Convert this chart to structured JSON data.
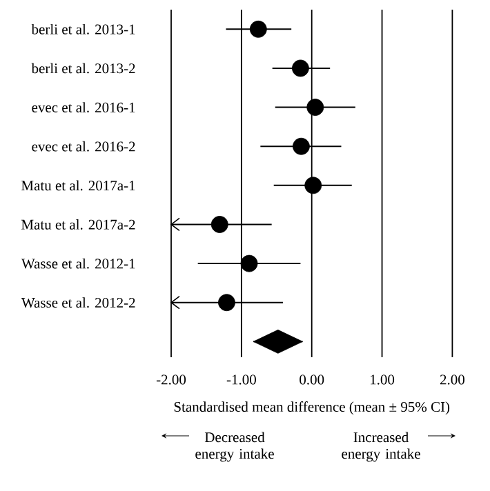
{
  "chart_data": {
    "type": "scatter",
    "orientation": "horizontal",
    "categories": [
      "berli et al. 2013-1",
      "berli et al. 2013-2",
      "evec et al. 2016-1",
      "evec et al. 2016-2",
      "Matu et al. 2017a-1",
      "Matu et al. 2017a-2",
      "Wasse et al. 2012-1",
      "Wasse et al. 2012-2",
      null
    ],
    "xlabel": "Standardised mean difference (mean ± 95% CI)",
    "xlim": [
      -2,
      2
    ],
    "xticks": [
      {
        "value": -2,
        "label": "-2.00"
      },
      {
        "value": -1,
        "label": "-1.00"
      },
      {
        "value": 0,
        "label": "0.00"
      },
      {
        "value": 1,
        "label": "1.00"
      },
      {
        "value": 2,
        "label": "2.00"
      }
    ],
    "grid": "x",
    "annotations": [
      "Decreased energy intake",
      "Increased energy intake"
    ],
    "series": [
      {
        "color": "#000000",
        "marker": "circle",
        "values": [
          -0.76,
          -0.16,
          0.05,
          -0.15,
          0.02,
          -1.31,
          -0.89,
          -1.21,
          null
        ],
        "errors": [
          [
            -1.22,
            -0.29
          ],
          [
            -0.56,
            0.26
          ],
          [
            -0.52,
            0.62
          ],
          [
            -0.73,
            0.42
          ],
          [
            -0.54,
            0.57
          ],
          [
            -2,
            -0.57
          ],
          [
            -1.62,
            -0.16
          ],
          [
            -2,
            -0.41
          ],
          null
        ]
      },
      {
        "color": "#000000",
        "marker": "diamond",
        "values": [
          null,
          null,
          null,
          null,
          null,
          null,
          null,
          null,
          -0.48
        ],
        "errors": [
          null,
          null,
          null,
          null,
          null,
          null,
          null,
          null,
          [
            -0.83,
            -0.13
          ]
        ]
      }
    ]
  }
}
